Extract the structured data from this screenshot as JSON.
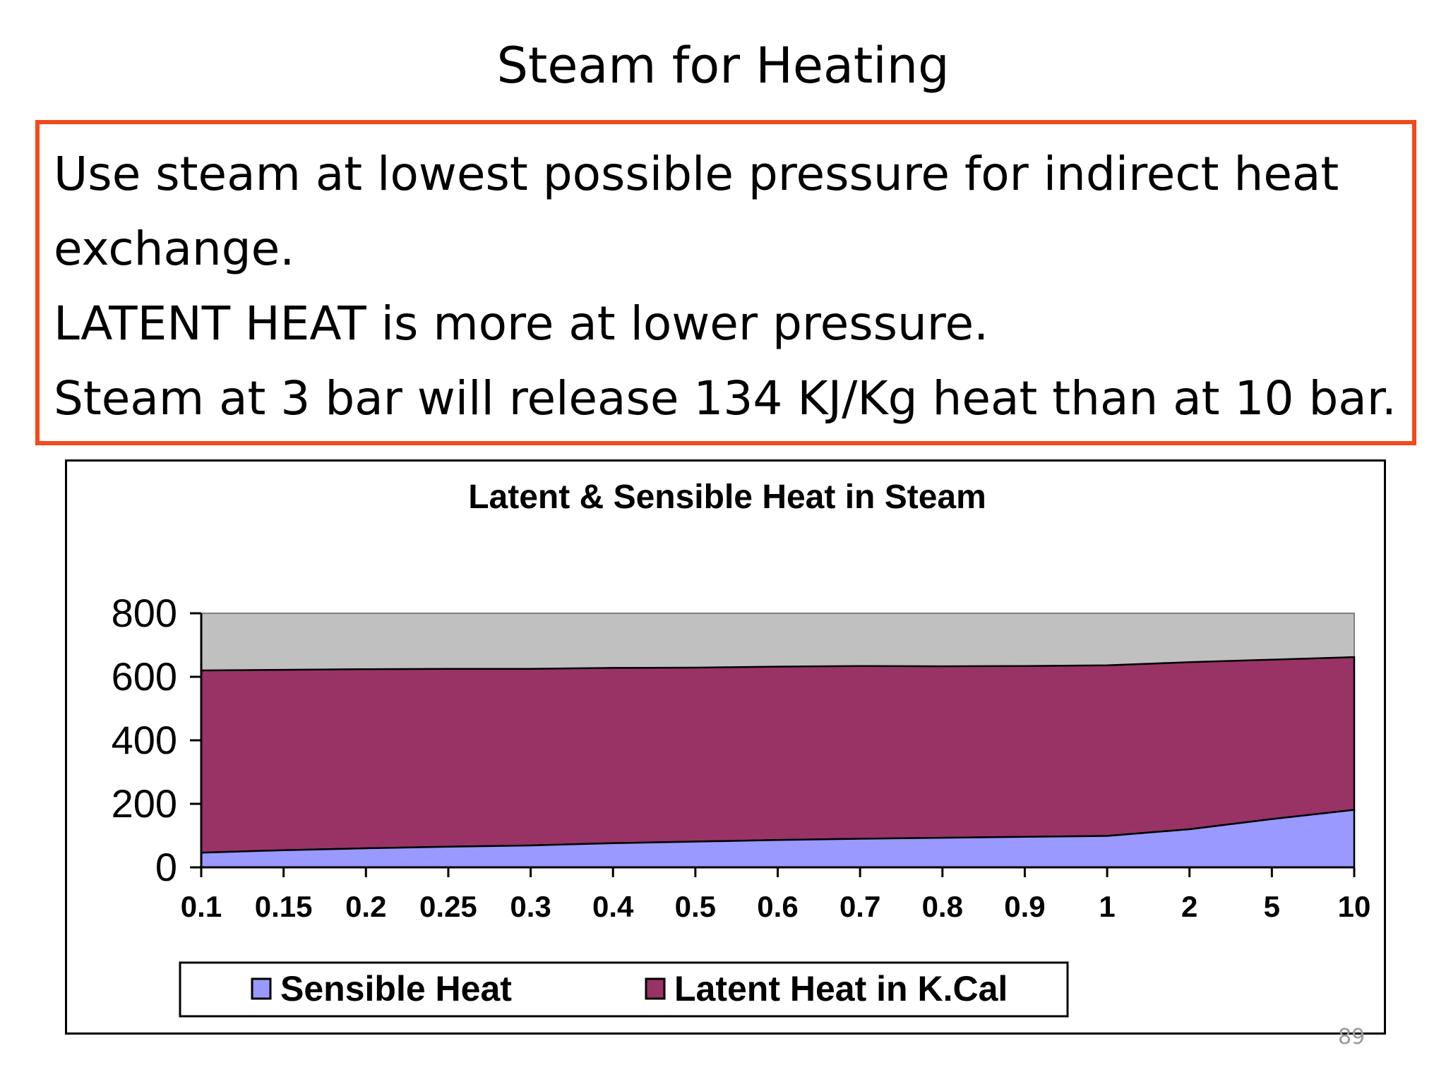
{
  "slide": {
    "title": "Steam for  Heating",
    "page_number": "89"
  },
  "callout": {
    "lines": [
      "Use steam at lowest possible pressure for indirect heat exchange.",
      "LATENT HEAT is more at lower pressure.",
      "Steam at 3 bar will release 134 KJ/Kg heat than at 10 bar."
    ],
    "border_color": "#f24a1c"
  },
  "chart_data": {
    "type": "area",
    "stacked": true,
    "title": "Latent & Sensible Heat in Steam",
    "categories": [
      "0.1",
      "0.15",
      "0.2",
      "0.25",
      "0.3",
      "0.4",
      "0.5",
      "0.6",
      "0.7",
      "0.8",
      "0.9",
      "1",
      "2",
      "5",
      "10"
    ],
    "series": [
      {
        "name": "Sensible Heat",
        "color": "#9999ff",
        "values": [
          46,
          54,
          60,
          65,
          69,
          76,
          81,
          86,
          90,
          93,
          96,
          99,
          120,
          152,
          181
        ]
      },
      {
        "name": "Latent Heat in K.Cal",
        "color": "#993366",
        "values": [
          574,
          568,
          564,
          560,
          556,
          552,
          548,
          546,
          544,
          540,
          538,
          537,
          526,
          502,
          481
        ]
      }
    ],
    "y_ticks": [
      "0",
      "200",
      "400",
      "600",
      "800"
    ],
    "ylim": [
      0,
      800
    ],
    "plot_background": "#c0c0c0",
    "grid": false,
    "legend_position": "bottom"
  }
}
